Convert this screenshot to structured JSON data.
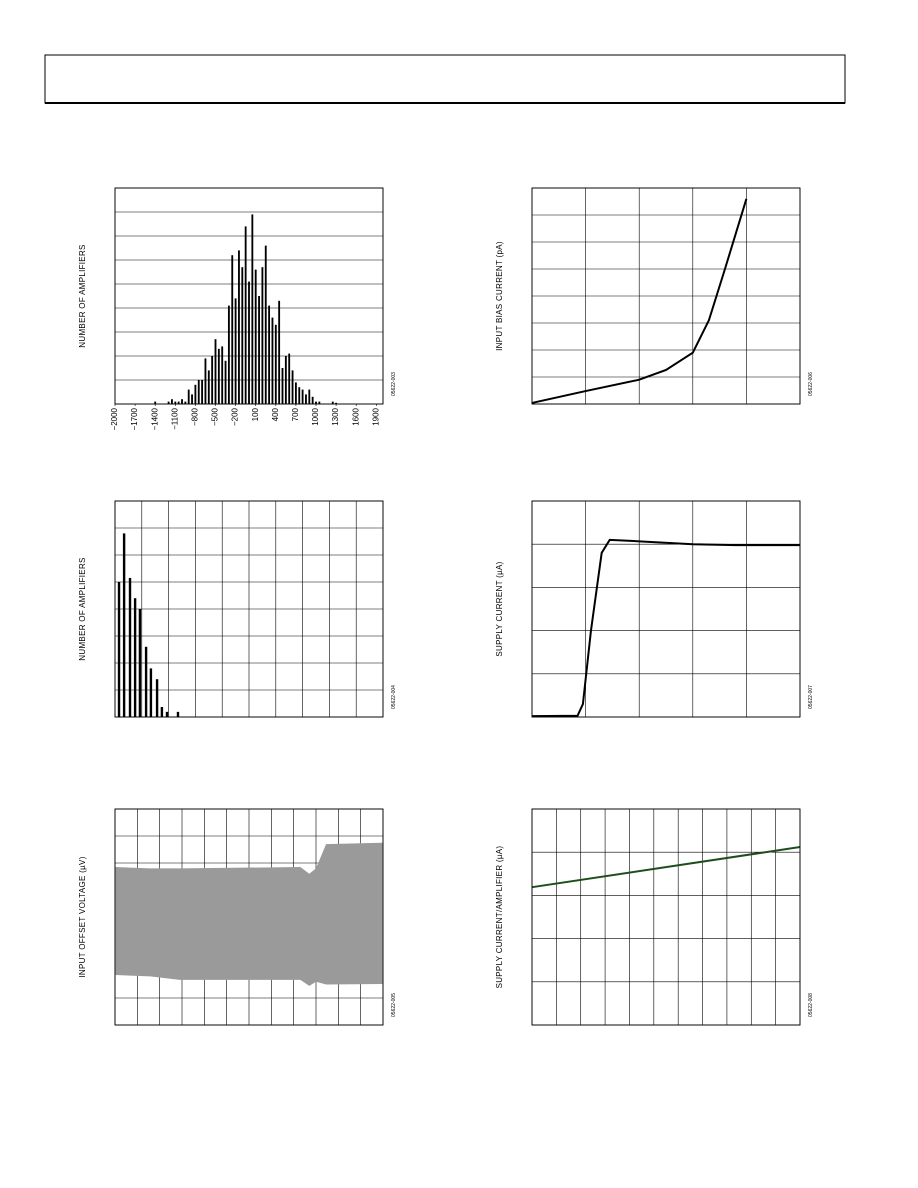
{
  "chart_data": [
    {
      "type": "histogram",
      "y_label": "NUMBER OF AMPLIFIERS",
      "code": "05622-003",
      "color": "#000000",
      "xlim": [
        -2000,
        2000
      ],
      "ylim": [
        0,
        9
      ],
      "xticks": [
        {
          "value": -2000,
          "label": "−2000"
        },
        {
          "value": -1700,
          "label": "−1700"
        },
        {
          "value": -1400,
          "label": "−1400"
        },
        {
          "value": -1100,
          "label": "−1100"
        },
        {
          "value": -800,
          "label": "−800"
        },
        {
          "value": -500,
          "label": "−500"
        },
        {
          "value": -200,
          "label": "−200"
        },
        100,
        400,
        700,
        1000,
        1300,
        1600,
        1900
      ],
      "bins": [
        -1425,
        -1375,
        -1325,
        -1275,
        -1225,
        -1175,
        -1125,
        -1075,
        -1025,
        -975,
        -925,
        -875,
        -825,
        -775,
        -725,
        -675,
        -625,
        -575,
        -525,
        -475,
        -425,
        -375,
        -325,
        -275,
        -225,
        -175,
        -125,
        -75,
        -25,
        25,
        75,
        125,
        175,
        225,
        275,
        325,
        375,
        425,
        475,
        525,
        575,
        625,
        675,
        725,
        775,
        825,
        875,
        925,
        975,
        1025,
        1075,
        1125,
        1175,
        1225,
        1275,
        1325
      ],
      "counts": [
        0.1,
        0,
        0,
        0,
        0.1,
        0.2,
        0.1,
        0.1,
        0.2,
        0.1,
        0.6,
        0.4,
        0.8,
        1,
        1,
        1.9,
        1.4,
        2,
        2.7,
        2.3,
        2.4,
        1.8,
        4.1,
        6.2,
        4.4,
        6.4,
        5.7,
        7.4,
        5.1,
        7.9,
        5.6,
        4.5,
        5.7,
        6.6,
        4.1,
        3.6,
        3.3,
        4.3,
        1.5,
        2,
        2.1,
        1.4,
        0.9,
        0.7,
        0.6,
        0.4,
        0.6,
        0.3,
        0.1,
        0.1,
        0,
        0,
        0,
        0.1,
        0.05
      ]
    },
    {
      "type": "line",
      "y_label": "INPUT BIAS CURRENT (pA)",
      "code": "05622-006",
      "color": "#000000",
      "xlim": [
        0,
        5
      ],
      "ylim": [
        0,
        8
      ],
      "x": [
        0,
        1,
        2,
        2.5,
        3,
        3.3,
        3.6,
        4
      ],
      "values": [
        0.04,
        0.48,
        0.9,
        1.26,
        1.9,
        3.1,
        5,
        7.6
      ]
    },
    {
      "type": "bar",
      "y_label": "NUMBER OF AMPLIFIERS",
      "code": "05622-004",
      "color": "#000000",
      "xlim": [
        0,
        10
      ],
      "ylim": [
        0,
        8
      ],
      "x": [
        0.15,
        0.34,
        0.56,
        0.75,
        0.93,
        1.16,
        1.34,
        1.57,
        1.75,
        1.94,
        2.35
      ],
      "values": [
        5,
        6.8,
        5.15,
        4.4,
        4,
        2.6,
        1.8,
        1.4,
        0.37,
        0.19,
        0.19
      ]
    },
    {
      "type": "line",
      "y_label": "SUPPLY CURRENT (µA)",
      "code": "05622-007",
      "color": "#000000",
      "xlim": [
        0,
        5
      ],
      "ylim": [
        0,
        5
      ],
      "x": [
        0,
        0.85,
        0.95,
        1.1,
        1.3,
        1.45,
        1.8,
        3,
        3.8,
        5
      ],
      "values": [
        0.02,
        0.03,
        0.3,
        2,
        3.8,
        4.1,
        4.08,
        4,
        3.98,
        3.98
      ]
    },
    {
      "type": "band",
      "y_label": "INPUT OFFSET VOLTAGE (µV)",
      "code": "05622-005",
      "color": "#9a9a9a",
      "xlim": [
        0,
        12
      ],
      "ylim": [
        0,
        8
      ],
      "x": [
        0,
        1.57,
        2.9,
        8.3,
        8.7,
        9,
        9.45,
        12
      ],
      "upper": [
        5.85,
        5.8,
        5.8,
        5.85,
        5.6,
        5.8,
        6.7,
        6.75
      ],
      "lower": [
        1.85,
        1.8,
        1.67,
        1.67,
        1.45,
        1.6,
        1.5,
        1.52
      ]
    },
    {
      "type": "line",
      "y_label": "SUPPLY CURRENT/AMPLIFIER (µA)",
      "code": "05622-008",
      "color": "#1e4d1e",
      "xlim": [
        0,
        11
      ],
      "ylim": [
        0,
        5
      ],
      "x": [
        0,
        11
      ],
      "values": [
        3.19,
        4.12
      ]
    }
  ]
}
